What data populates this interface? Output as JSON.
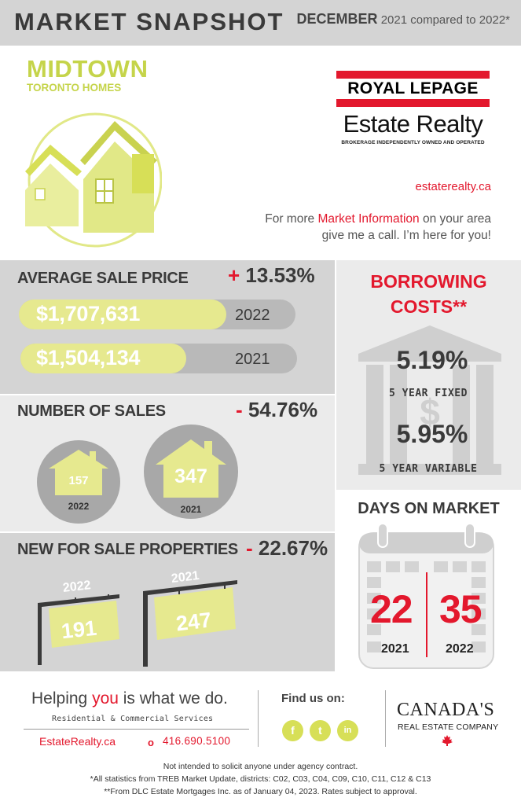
{
  "header": {
    "title": "MARKET SNAPSHOT",
    "month": "DECEMBER",
    "comparison": "2021 compared to 2022*"
  },
  "area": {
    "name": "MIDTOWN",
    "subtitle": "TORONTO HOMES"
  },
  "brand": {
    "line1": "ROYAL LEPAGE",
    "line2": "Estate Realty",
    "line3": "BROKERAGE INDEPENDENTLY OWNED AND OPERATED",
    "website": "estaterealty.ca",
    "info_prefix": "For more ",
    "info_highlight": "Market Information",
    "info_suffix": " on your area give me a call. I’m here for you!"
  },
  "average_sale_price": {
    "title": "AVERAGE SALE PRICE",
    "change_sign": "+",
    "change": "13.53%",
    "rows": [
      {
        "value": "$1,707,631",
        "year": "2022",
        "fill": 1.0
      },
      {
        "value": "$1,504,134",
        "year": "2021",
        "fill": 0.881
      }
    ]
  },
  "number_of_sales": {
    "title": "NUMBER OF SALES",
    "change_sign": "-",
    "change": "54.76%",
    "items": [
      {
        "value": "157",
        "year": "2022"
      },
      {
        "value": "347",
        "year": "2021"
      }
    ]
  },
  "new_for_sale": {
    "title": "NEW FOR SALE PROPERTIES",
    "change_sign": "-",
    "change": "22.67%",
    "items": [
      {
        "value": "191",
        "year": "2022"
      },
      {
        "value": "247",
        "year": "2021"
      }
    ]
  },
  "borrowing": {
    "title_line1": "BORROWING",
    "title_line2": "COSTS**",
    "rate1": "5.19%",
    "label1": "5 YEAR FIXED",
    "rate2": "5.95%",
    "label2": "5 YEAR VARIABLE",
    "bank_symbol": "$"
  },
  "days_on_market": {
    "title": "DAYS ON MARKET",
    "items": [
      {
        "value": "22",
        "year": "2021"
      },
      {
        "value": "35",
        "year": "2022"
      }
    ]
  },
  "footer": {
    "helping_prefix": "Helping ",
    "helping_highlight": "you",
    "helping_suffix": " is what we do.",
    "services": "Residential & Commercial Services",
    "site": "EstateRealty.ca",
    "phone_icon": "o",
    "phone": "416.690.5100",
    "find_us": "Find us on:",
    "social": [
      {
        "icon": "facebook-icon",
        "glyph": "f"
      },
      {
        "icon": "twitter-icon",
        "glyph": "t"
      },
      {
        "icon": "linkedin-icon",
        "glyph": "in"
      }
    ],
    "company_line1": "CANADA'S",
    "company_line2": "REAL ESTATE COMPANY",
    "disclaimer1": "Not intended to solicit anyone under agency contract.",
    "disclaimer2": "*All statistics from TREB Market Update, districts: C02, C03, C04, C09, C10, C11, C12 & C13",
    "disclaimer3": "**From DLC Estate Mortgages Inc. as of January 04, 2023. Rates subject to approval."
  },
  "colors": {
    "accent_red": "#e3182d",
    "accent_lime": "#c5d44a",
    "panel_dark": "#d4d4d4",
    "panel_light": "#ebebeb"
  }
}
